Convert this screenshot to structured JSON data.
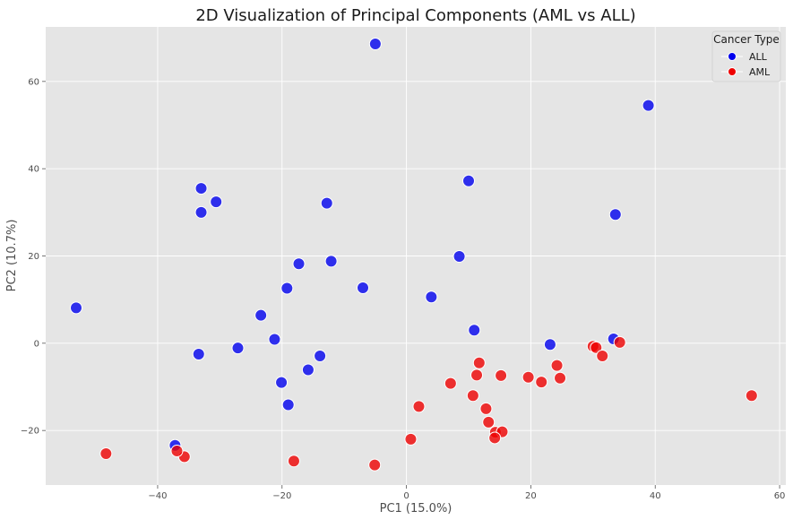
{
  "chart_data": {
    "type": "scatter",
    "title": "2D Visualization of Principal Components (AML vs ALL)",
    "xlabel": "PC1 (15.0%)",
    "ylabel": "PC2 (10.7%)",
    "xlim": [
      -58,
      61
    ],
    "ylim": [
      -32.5,
      72.5
    ],
    "xticks": [
      -40,
      -20,
      0,
      20,
      40,
      60
    ],
    "yticks": [
      -20,
      0,
      20,
      40,
      60
    ],
    "grid": true,
    "legend": {
      "title": "Cancer Type",
      "placement": "top-right"
    },
    "series": [
      {
        "name": "ALL",
        "color": "#0000ee",
        "points": [
          [
            -5,
            68.6
          ],
          [
            38.9,
            54.5
          ],
          [
            10,
            37.2
          ],
          [
            -33,
            35.5
          ],
          [
            -30.6,
            32.4
          ],
          [
            -33,
            30
          ],
          [
            -12.8,
            32.1
          ],
          [
            33.6,
            29.5
          ],
          [
            8.5,
            19.9
          ],
          [
            -12.1,
            18.8
          ],
          [
            -17.3,
            18.2
          ],
          [
            -19.2,
            12.6
          ],
          [
            -7,
            12.7
          ],
          [
            4,
            10.6
          ],
          [
            -53.1,
            8.1
          ],
          [
            -23.4,
            6.4
          ],
          [
            10.9,
            3
          ],
          [
            -21.2,
            0.9
          ],
          [
            33.3,
            1
          ],
          [
            -27.1,
            -1.1
          ],
          [
            23.1,
            -0.3
          ],
          [
            -33.4,
            -2.5
          ],
          [
            -13.9,
            -2.9
          ],
          [
            -15.8,
            -6.1
          ],
          [
            -20.1,
            -9
          ],
          [
            -19,
            -14.1
          ],
          [
            -37.2,
            -23.4
          ]
        ]
      },
      {
        "name": "AML",
        "color": "#ee0000",
        "points": [
          [
            55.5,
            -12
          ],
          [
            30,
            -0.7
          ],
          [
            30.5,
            -1
          ],
          [
            34.3,
            0.2
          ],
          [
            31.5,
            -2.9
          ],
          [
            24.2,
            -5.1
          ],
          [
            24.7,
            -8
          ],
          [
            21.7,
            -8.9
          ],
          [
            19.6,
            -7.8
          ],
          [
            15.2,
            -7.4
          ],
          [
            11.7,
            -4.5
          ],
          [
            11.3,
            -7.3
          ],
          [
            7.1,
            -9.2
          ],
          [
            10.7,
            -12
          ],
          [
            12.8,
            -15
          ],
          [
            13.2,
            -18.1
          ],
          [
            14.3,
            -20.4
          ],
          [
            15.4,
            -20.3
          ],
          [
            14.2,
            -21.7
          ],
          [
            2,
            -14.5
          ],
          [
            0.7,
            -22
          ],
          [
            -5.1,
            -27.9
          ],
          [
            -18.1,
            -27
          ],
          [
            -35.7,
            -26
          ],
          [
            -36.9,
            -24.7
          ],
          [
            -48.3,
            -25.3
          ]
        ]
      }
    ]
  }
}
